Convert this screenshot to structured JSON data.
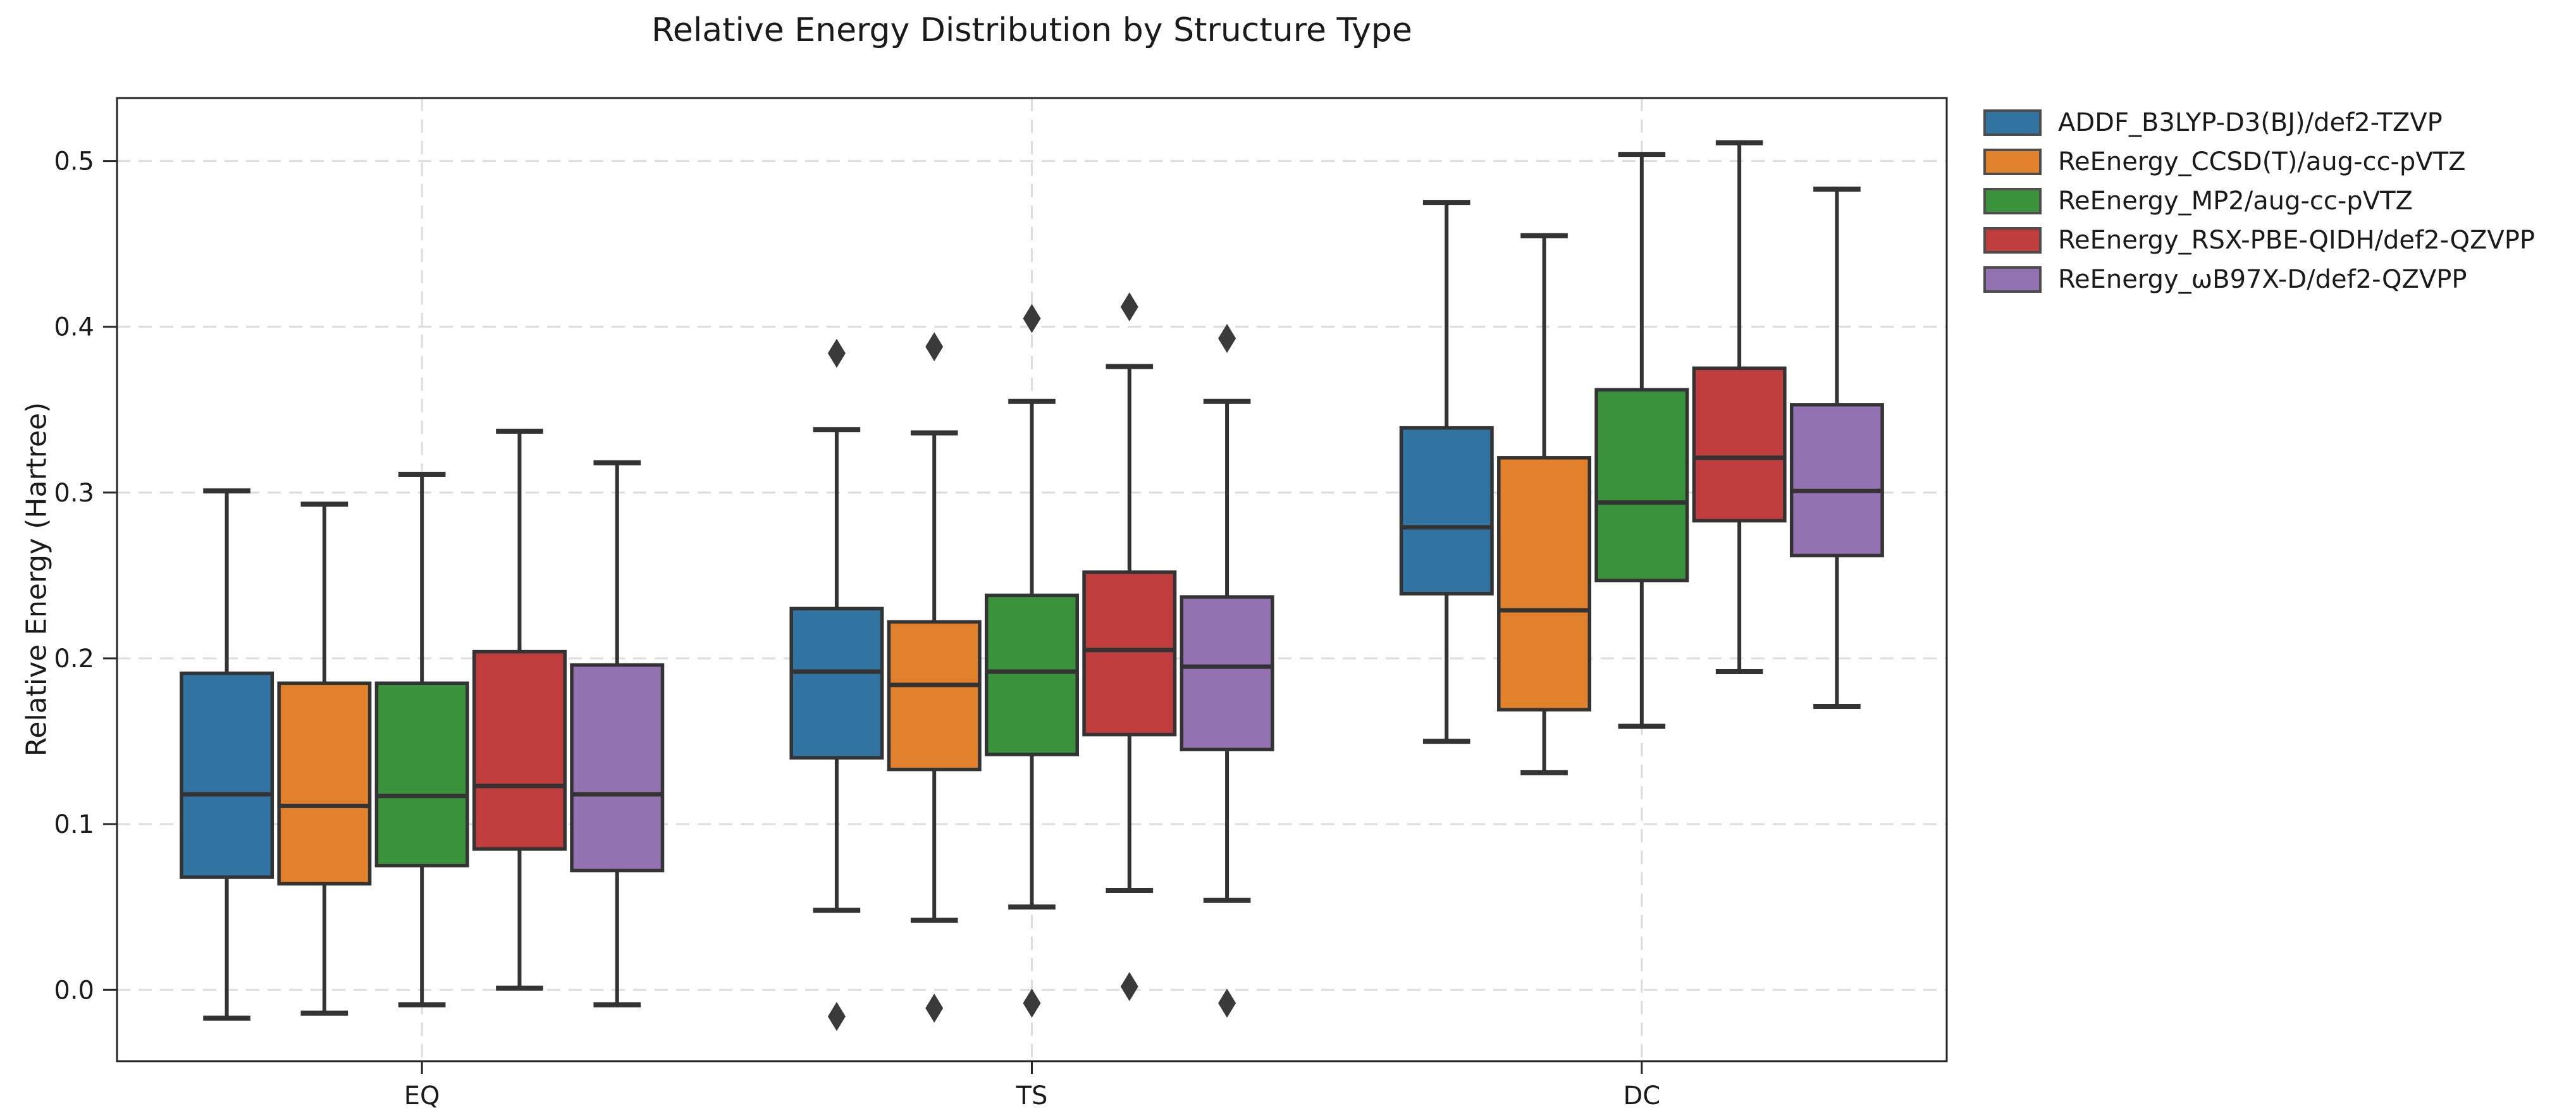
{
  "chart_data": {
    "type": "boxplot",
    "title": "Relative Energy Distribution by Structure Type",
    "xlabel": "",
    "ylabel": "Relative Energy (Hartree)",
    "categories": [
      "EQ",
      "TS",
      "DC"
    ],
    "ylim": [
      -0.043,
      0.538
    ],
    "ytick_values": [
      0.0,
      0.1,
      0.2,
      0.3,
      0.4,
      0.5
    ],
    "ytick_labels": [
      "0.0",
      "0.1",
      "0.2",
      "0.3",
      "0.4",
      "0.5"
    ],
    "grid": "dashed, both axes, light gray",
    "legend_position": "outside upper right, no frame",
    "flier_marker": "diamond",
    "style": {
      "grid_color": "#dcdcdc",
      "spine_color": "#262626",
      "line_color": "#333333",
      "flier_color": "#3a3a3a",
      "text_color": "#1a1a1a",
      "background": "#ffffff"
    },
    "series": [
      {
        "name": "ADDF_B3LYP-D3(BJ)/def2-TZVP",
        "color": "#3274a1",
        "boxes": [
          {
            "category": "EQ",
            "whislo": -0.017,
            "q1": 0.068,
            "med": 0.118,
            "q3": 0.191,
            "whishi": 0.301,
            "fliers": []
          },
          {
            "category": "TS",
            "whislo": 0.048,
            "q1": 0.14,
            "med": 0.192,
            "q3": 0.23,
            "whishi": 0.338,
            "fliers": [
              0.384,
              -0.016
            ]
          },
          {
            "category": "DC",
            "whislo": 0.15,
            "q1": 0.239,
            "med": 0.279,
            "q3": 0.339,
            "whishi": 0.475,
            "fliers": []
          }
        ]
      },
      {
        "name": "ReEnergy_CCSD(T)/aug-cc-pVTZ",
        "color": "#e1812c",
        "boxes": [
          {
            "category": "EQ",
            "whislo": -0.014,
            "q1": 0.064,
            "med": 0.111,
            "q3": 0.185,
            "whishi": 0.293,
            "fliers": []
          },
          {
            "category": "TS",
            "whislo": 0.042,
            "q1": 0.133,
            "med": 0.184,
            "q3": 0.222,
            "whishi": 0.336,
            "fliers": [
              0.388,
              -0.011
            ]
          },
          {
            "category": "DC",
            "whislo": 0.131,
            "q1": 0.169,
            "med": 0.229,
            "q3": 0.321,
            "whishi": 0.455,
            "fliers": []
          }
        ]
      },
      {
        "name": "ReEnergy_MP2/aug-cc-pVTZ",
        "color": "#3a923a",
        "boxes": [
          {
            "category": "EQ",
            "whislo": -0.009,
            "q1": 0.075,
            "med": 0.117,
            "q3": 0.185,
            "whishi": 0.311,
            "fliers": []
          },
          {
            "category": "TS",
            "whislo": 0.05,
            "q1": 0.142,
            "med": 0.192,
            "q3": 0.238,
            "whishi": 0.355,
            "fliers": [
              0.405,
              -0.008
            ]
          },
          {
            "category": "DC",
            "whislo": 0.159,
            "q1": 0.247,
            "med": 0.294,
            "q3": 0.362,
            "whishi": 0.504,
            "fliers": []
          }
        ]
      },
      {
        "name": "ReEnergy_RSX-PBE-QIDH/def2-QZVPP",
        "color": "#c03d3e",
        "boxes": [
          {
            "category": "EQ",
            "whislo": 0.001,
            "q1": 0.085,
            "med": 0.123,
            "q3": 0.204,
            "whishi": 0.337,
            "fliers": []
          },
          {
            "category": "TS",
            "whislo": 0.06,
            "q1": 0.154,
            "med": 0.205,
            "q3": 0.252,
            "whishi": 0.376,
            "fliers": [
              0.412,
              0.002
            ]
          },
          {
            "category": "DC",
            "whislo": 0.192,
            "q1": 0.283,
            "med": 0.321,
            "q3": 0.375,
            "whishi": 0.511,
            "fliers": []
          }
        ]
      },
      {
        "name": "ReEnergy_ωB97X-D/def2-QZVPP",
        "color": "#9372b2",
        "boxes": [
          {
            "category": "EQ",
            "whislo": -0.009,
            "q1": 0.072,
            "med": 0.118,
            "q3": 0.196,
            "whishi": 0.318,
            "fliers": []
          },
          {
            "category": "TS",
            "whislo": 0.054,
            "q1": 0.145,
            "med": 0.195,
            "q3": 0.237,
            "whishi": 0.355,
            "fliers": [
              0.393,
              -0.008
            ]
          },
          {
            "category": "DC",
            "whislo": 0.171,
            "q1": 0.262,
            "med": 0.301,
            "q3": 0.353,
            "whishi": 0.483,
            "fliers": []
          }
        ]
      }
    ]
  }
}
